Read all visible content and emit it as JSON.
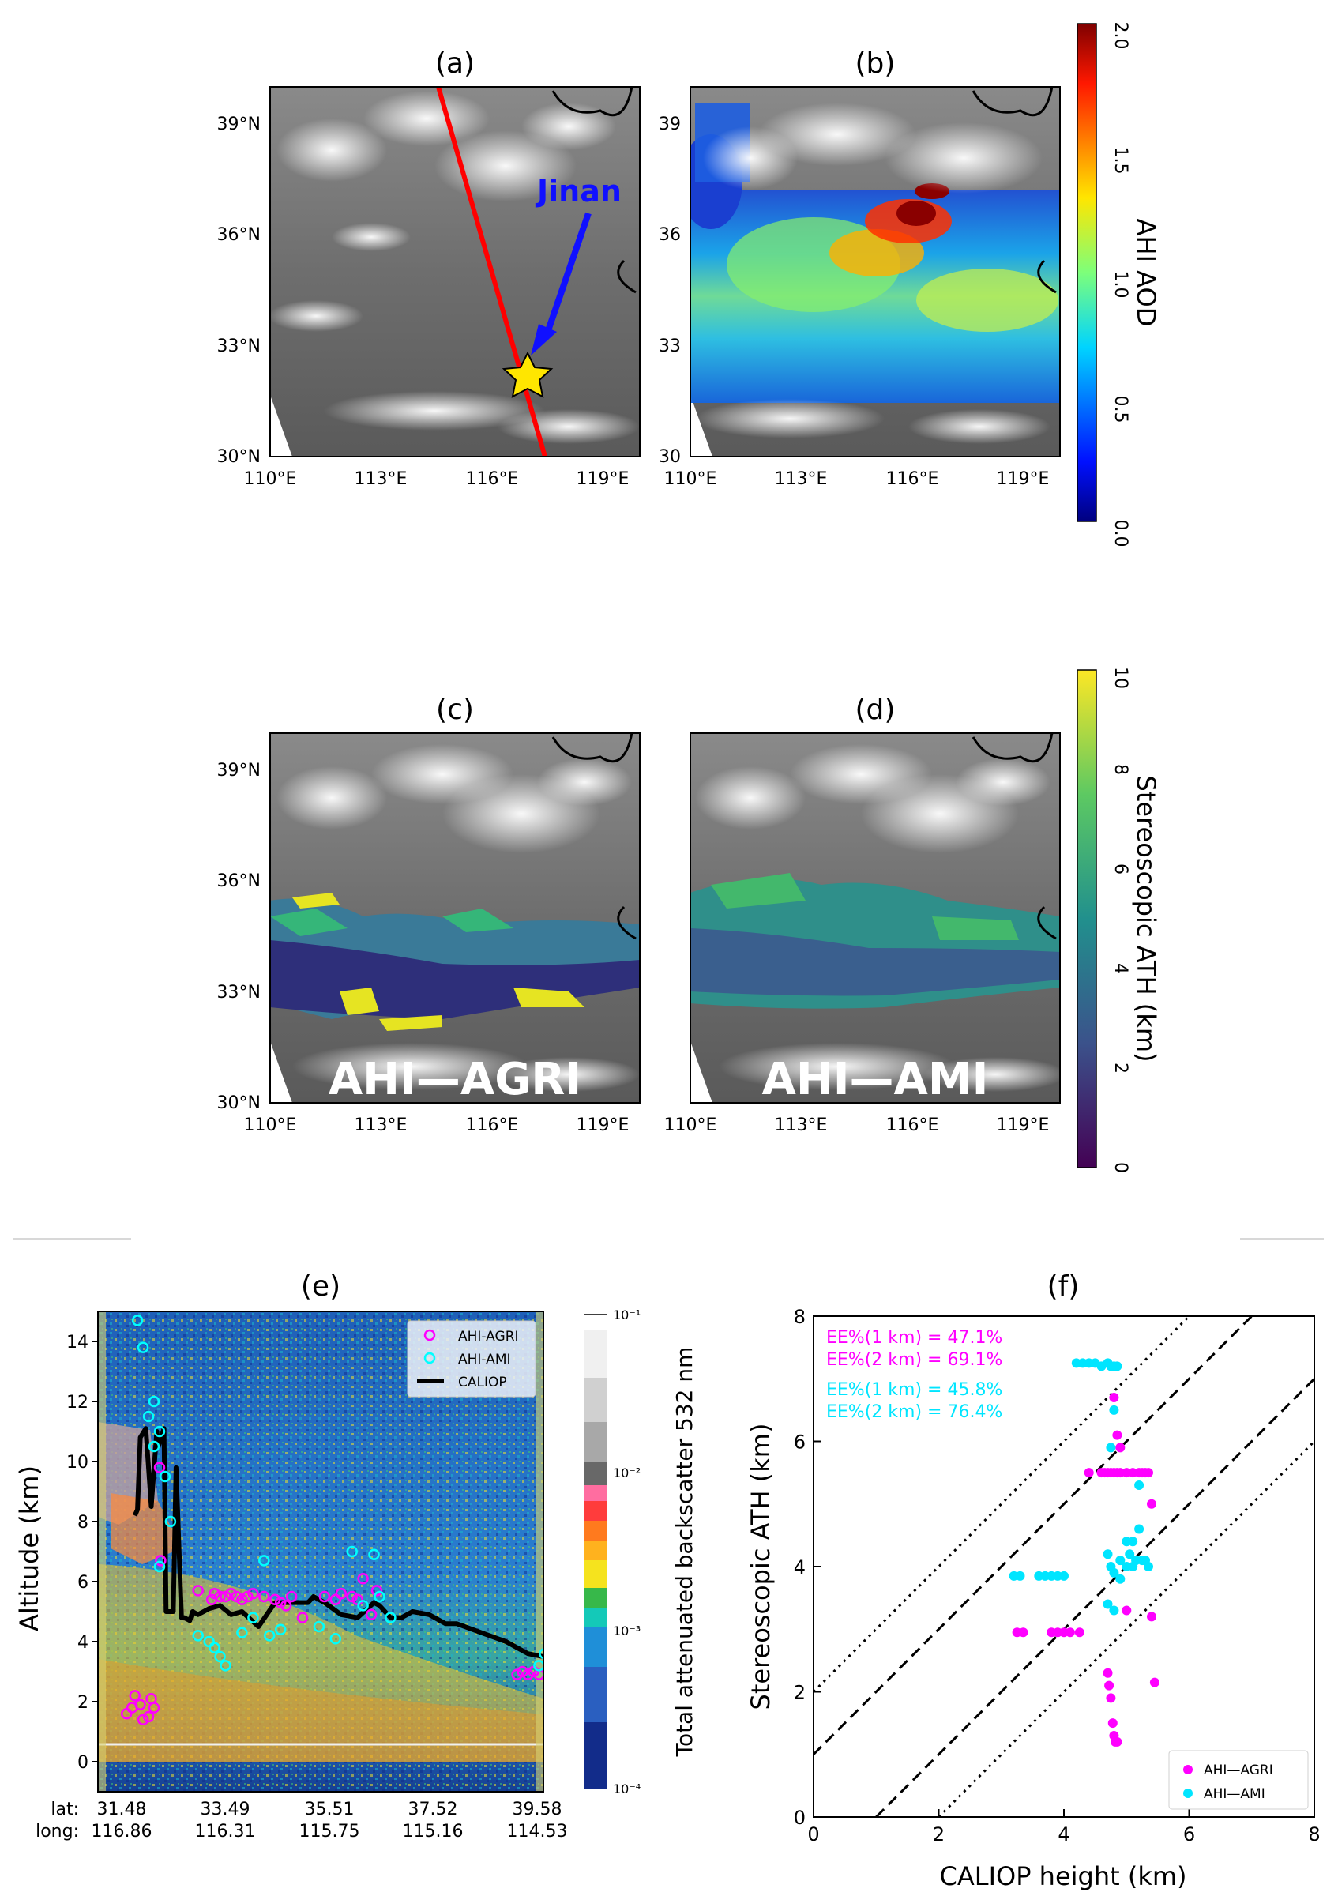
{
  "panels": {
    "a": {
      "label": "(a)",
      "yticks": [
        "30°N",
        "33°N",
        "36°N",
        "39°N"
      ],
      "xticks": [
        "110°E",
        "113°E",
        "116°E",
        "119°E"
      ],
      "annotation": "Jinan"
    },
    "b": {
      "label": "(b)",
      "yticks": [
        "30",
        "33",
        "36",
        "39"
      ],
      "xticks": [
        "110°E",
        "113°E",
        "116°E",
        "119°E"
      ]
    },
    "c": {
      "label": "(c)",
      "yticks": [
        "30°N",
        "33°N",
        "36°N",
        "39°N"
      ],
      "xticks": [
        "110°E",
        "113°E",
        "116°E",
        "119°E"
      ],
      "overlay": "AHI—AGRI"
    },
    "d": {
      "label": "(d)",
      "xticks": [
        "110°E",
        "113°E",
        "116°E",
        "119°E"
      ],
      "overlay": "AHI—AMI"
    },
    "e": {
      "label": "(e)",
      "ylabel": "Altitude (km)",
      "yticks": [
        "0",
        "2",
        "4",
        "6",
        "8",
        "10",
        "12",
        "14"
      ],
      "lat_label": "lat:",
      "long_label": "long:",
      "lat": [
        "31.48",
        "33.49",
        "35.51",
        "37.52",
        "39.58"
      ],
      "long": [
        "116.86",
        "116.31",
        "115.75",
        "115.16",
        "114.53"
      ],
      "legend": [
        "AHI-AGRI",
        "AHI-AMI",
        "CALIOP"
      ]
    },
    "f": {
      "label": "(f)",
      "xlabel": "CALIOP height (km)",
      "ylabel": "Stereoscopic ATH (km)",
      "ticks": [
        "0",
        "2",
        "4",
        "6",
        "8"
      ],
      "ee_agri_1": "EE%(1 km) = 47.1%",
      "ee_agri_2": "EE%(2 km) = 69.1%",
      "ee_ami_1": "EE%(1 km) = 45.8%",
      "ee_ami_2": "EE%(2 km) = 76.4%",
      "legend": [
        "AHI—AGRI",
        "AHI—AMI"
      ]
    }
  },
  "colorbars": {
    "aod": {
      "label": "AHI AOD",
      "ticks": [
        "0.0",
        "0.5",
        "1.0",
        "1.5",
        "2.0"
      ]
    },
    "ath": {
      "label": "Stereoscopic ATH  (km)",
      "ticks": [
        "0",
        "2",
        "4",
        "6",
        "8",
        "10"
      ]
    },
    "backscatter": {
      "label": "Total attenuated backscatter 532 nm",
      "ticks": [
        "10⁻⁴",
        "10⁻³",
        "10⁻²",
        "10⁻¹"
      ]
    }
  },
  "colors": {
    "agri": "#ff00ff",
    "ami": "#00ffff",
    "caliop": "#000000",
    "track": "#ff0000",
    "arrow": "#1010ff",
    "star": "#ffe600"
  },
  "chart_data": [
    {
      "type": "scatter",
      "title": "(e)",
      "ylabel": "Altitude (km)",
      "ylim": [
        -1,
        15
      ],
      "xlim": [
        31.48,
        39.58
      ],
      "x_ticks_lat": [
        31.48,
        33.49,
        35.51,
        37.52,
        39.58
      ],
      "series": [
        {
          "name": "CALIOP",
          "marker": "line",
          "x": [
            32.15,
            32.2,
            32.25,
            32.35,
            32.45,
            32.55,
            32.58,
            32.68,
            32.72,
            32.85,
            32.9,
            33.0,
            33.05,
            33.15,
            33.2,
            33.3,
            33.5,
            33.7,
            33.9,
            34.1,
            34.4,
            34.7,
            35.0,
            35.3,
            35.4,
            35.6,
            35.9,
            36.2,
            36.5,
            36.6,
            36.8,
            37.0,
            37.2,
            37.5,
            37.8,
            38.0,
            38.3,
            38.6,
            38.9,
            39.1,
            39.3,
            39.58
          ],
          "y": [
            8.2,
            8.4,
            10.8,
            11.1,
            8.5,
            11.0,
            10.5,
            11.1,
            5.0,
            5.0,
            9.8,
            4.8,
            4.8,
            4.7,
            5.0,
            4.9,
            5.1,
            5.2,
            4.9,
            5.0,
            4.5,
            5.3,
            5.3,
            5.3,
            5.5,
            5.3,
            4.9,
            4.8,
            5.3,
            5.2,
            4.8,
            4.8,
            5.0,
            4.9,
            4.6,
            4.6,
            4.4,
            4.2,
            4.0,
            3.8,
            3.6,
            3.5
          ]
        },
        {
          "name": "AHI-AGRI",
          "marker": "o",
          "x": [
            32.0,
            32.1,
            32.15,
            32.25,
            32.3,
            32.4,
            32.45,
            32.5,
            32.6,
            32.62,
            33.3,
            33.55,
            33.6,
            33.7,
            33.8,
            33.9,
            34.0,
            34.1,
            34.2,
            34.3,
            34.5,
            34.7,
            34.8,
            34.9,
            35.0,
            35.2,
            35.6,
            35.8,
            35.9,
            36.1,
            36.2,
            36.3,
            36.45,
            36.55,
            39.1,
            39.2,
            39.3,
            39.4,
            39.5
          ],
          "y": [
            1.6,
            1.8,
            2.2,
            1.9,
            1.4,
            1.5,
            2.1,
            1.8,
            9.8,
            6.7,
            5.7,
            5.4,
            5.6,
            5.5,
            5.5,
            5.6,
            5.5,
            5.4,
            5.5,
            5.6,
            5.5,
            5.4,
            5.3,
            5.2,
            5.5,
            4.8,
            5.5,
            5.4,
            5.6,
            5.5,
            5.4,
            6.1,
            4.9,
            5.7,
            2.9,
            3.0,
            2.9,
            3.0,
            2.9
          ]
        },
        {
          "name": "AHI-AMI",
          "marker": "o",
          "x": [
            32.2,
            32.3,
            32.4,
            32.5,
            32.5,
            32.6,
            32.7,
            32.8,
            32.6,
            33.3,
            33.5,
            33.6,
            33.7,
            33.8,
            34.1,
            34.3,
            34.5,
            34.6,
            34.8,
            35.5,
            35.8,
            36.1,
            36.3,
            36.5,
            36.6,
            36.8,
            39.5,
            39.6
          ],
          "y": [
            14.7,
            13.8,
            11.5,
            10.5,
            12.0,
            11.0,
            9.5,
            8.0,
            6.5,
            4.2,
            4.0,
            3.8,
            3.5,
            3.2,
            4.3,
            4.8,
            6.7,
            4.2,
            4.4,
            4.5,
            4.1,
            7.0,
            5.2,
            6.9,
            5.5,
            4.8,
            3.2,
            3.6
          ]
        }
      ]
    },
    {
      "type": "scatter",
      "title": "(f)",
      "xlabel": "CALIOP height (km)",
      "ylabel": "Stereoscopic ATH (km)",
      "xlim": [
        0,
        8
      ],
      "ylim": [
        0,
        8
      ],
      "reference_lines": {
        "dashed_offset_km": 1,
        "dotted_offset_km": 2
      },
      "series": [
        {
          "name": "AHI—AGRI",
          "x": [
            3.25,
            3.35,
            3.8,
            3.9,
            4.0,
            4.1,
            4.25,
            4.4,
            4.6,
            4.65,
            4.7,
            4.75,
            4.8,
            4.85,
            4.9,
            5.0,
            5.1,
            5.2,
            5.25,
            5.3,
            5.35,
            5.4,
            4.7,
            4.72,
            4.75,
            4.78,
            4.8,
            4.82,
            4.85,
            4.8,
            4.85,
            4.9,
            5.0,
            5.4,
            5.45
          ],
          "y": [
            2.95,
            2.95,
            2.95,
            2.95,
            2.95,
            2.95,
            2.95,
            5.5,
            5.5,
            5.5,
            5.5,
            5.5,
            5.5,
            5.5,
            5.5,
            5.5,
            5.5,
            5.5,
            5.5,
            5.5,
            5.5,
            5.0,
            2.3,
            2.1,
            1.9,
            1.5,
            1.3,
            1.2,
            1.2,
            6.7,
            6.1,
            5.9,
            3.3,
            3.2,
            2.15
          ]
        },
        {
          "name": "AHI—AMI",
          "x": [
            3.2,
            3.3,
            3.6,
            3.7,
            3.8,
            3.9,
            4.0,
            4.2,
            4.3,
            4.4,
            4.5,
            4.6,
            4.7,
            4.75,
            4.8,
            4.85,
            4.7,
            4.75,
            4.8,
            4.9,
            5.0,
            5.05,
            5.1,
            5.15,
            5.2,
            5.25,
            5.3,
            5.35,
            4.7,
            4.8,
            4.9,
            5.0,
            5.1,
            5.2,
            4.75,
            4.8
          ],
          "y": [
            3.85,
            3.85,
            3.85,
            3.85,
            3.85,
            3.85,
            3.85,
            7.25,
            7.25,
            7.25,
            7.25,
            7.2,
            7.25,
            7.2,
            7.2,
            7.2,
            4.2,
            4.0,
            3.9,
            4.1,
            4.4,
            4.2,
            4.0,
            4.1,
            4.6,
            4.1,
            4.1,
            4.0,
            3.4,
            3.3,
            3.8,
            4.0,
            4.4,
            5.3,
            5.9,
            6.5
          ]
        }
      ]
    }
  ]
}
